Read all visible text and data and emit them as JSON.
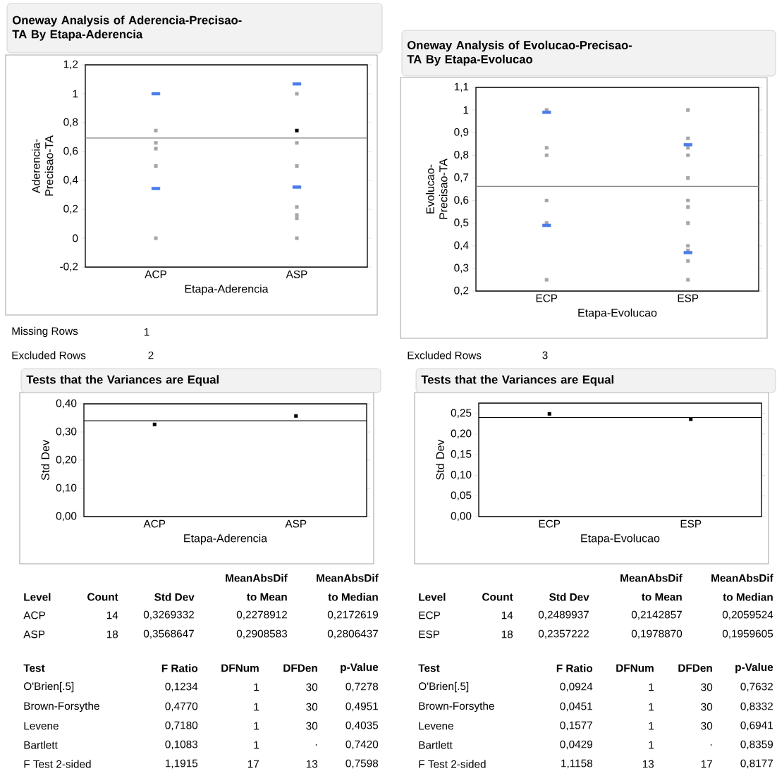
{
  "chart_data": [
    {
      "type": "scatter",
      "title": "Oneway Analysis of Aderencia-Precisao-TA By Etapa-Aderencia",
      "xlabel": "Etapa-Aderencia",
      "ylabel": "Aderencia-Precisao-TA",
      "categories": [
        "ACP",
        "ASP"
      ],
      "ylim": [
        -0.2,
        1.2
      ],
      "yticks": [
        {
          "value": -0.2,
          "label": "-0,2"
        },
        0,
        {
          "value": 0.2,
          "label": "0,2"
        },
        {
          "value": 0.4,
          "label": "0,4"
        },
        {
          "value": 0.6,
          "label": "0,6"
        },
        {
          "value": 0.8,
          "label": "0,8"
        },
        1,
        {
          "value": 1.2,
          "label": "1,2"
        }
      ],
      "marker": "square",
      "series": [
        {
          "color": "#a6a6a6",
          "x": [
            "ACP",
            "ACP",
            "ACP",
            "ACP",
            "ACP",
            "ACP",
            "ASP",
            "ASP",
            "ASP",
            "ASP",
            "ASP",
            "ASP",
            "ASP"
          ],
          "values": [
            null,
            0.745,
            0.66,
            0.62,
            0.5,
            0,
            1.0,
            0.66,
            0.5,
            0.216,
            0.161,
            0.138,
            0
          ]
        },
        {
          "color": "#000000",
          "x": [
            "ASP"
          ],
          "values": [
            0.745
          ]
        },
        {
          "color": "#4a7de8",
          "marker": "square",
          "x": [
            "ACP",
            "ASP",
            "ACP",
            "ASP"
          ],
          "values": [
            1.0,
            1.068,
            0.344,
            0.354
          ]
        }
      ],
      "ref_lines": [
        {
          "axis": "y",
          "value": 0.693,
          "color": "#808080"
        }
      ],
      "annotations": [
        "Missing Rows",
        "1",
        "Excluded Rows",
        "2"
      ]
    },
    {
      "type": "scatter",
      "title": "Oneway Analysis of Evolucao-Precisao-TA By Etapa-Evolucao",
      "xlabel": "Etapa-Evolucao",
      "ylabel": "Evolucao-Precisao-TA",
      "categories": [
        "ECP",
        "ESP"
      ],
      "ylim": [
        0.2,
        1.1
      ],
      "yticks": [
        {
          "value": 0.2,
          "label": "0,2"
        },
        {
          "value": 0.3,
          "label": "0,3"
        },
        {
          "value": 0.4,
          "label": "0,4"
        },
        {
          "value": 0.5,
          "label": "0,5"
        },
        {
          "value": 0.6,
          "label": "0,6"
        },
        {
          "value": 0.7,
          "label": "0,7"
        },
        {
          "value": 0.8,
          "label": "0,8"
        },
        {
          "value": 0.9,
          "label": "0,9"
        },
        1,
        {
          "value": 1.1,
          "label": "1,1"
        }
      ],
      "marker": "square",
      "series": [
        {
          "color": "#a6a6a6",
          "x": [
            "ECP",
            "ECP",
            "ECP",
            "ECP",
            "ECP",
            "ECP",
            "ESP",
            "ESP",
            "ESP",
            "ESP",
            "ESP",
            "ESP",
            "ESP",
            "ESP",
            "ESP",
            "ESP",
            "ESP",
            "ESP"
          ],
          "values": [
            1.0,
            0.833,
            0.8,
            0.6,
            0.5,
            0.25,
            1.0,
            0.875,
            0.833,
            0.8,
            0.7,
            0.6,
            0.571,
            0.5,
            0.4,
            0.38,
            0.333,
            0.25
          ]
        },
        {
          "color": "#4a7de8",
          "marker": "square",
          "x": [
            "ECP",
            "ESP",
            "ECP",
            "ESP"
          ],
          "values": [
            0.99,
            0.847,
            0.49,
            0.37
          ]
        }
      ],
      "ref_lines": [
        {
          "axis": "y",
          "value": 0.663,
          "color": "#808080"
        }
      ],
      "annotations": [
        "Excluded Rows",
        "3"
      ]
    },
    {
      "type": "scatter",
      "title": "Tests that the Variances are Equal",
      "xlabel": "Etapa-Aderencia",
      "ylabel": "Std Dev",
      "categories": [
        "ACP",
        "ASP"
      ],
      "ylim": [
        0,
        0.4
      ],
      "yticks": [
        {
          "value": 0,
          "label": "0,00"
        },
        {
          "value": 0.1,
          "label": "0,10"
        },
        {
          "value": 0.2,
          "label": "0,20"
        },
        {
          "value": 0.3,
          "label": "0,30"
        },
        {
          "value": 0.4,
          "label": "0,40"
        }
      ],
      "marker": "square",
      "series": [
        {
          "color": "#000000",
          "x": [
            "ACP",
            "ASP"
          ],
          "values": [
            0.327,
            0.357
          ]
        }
      ],
      "ref_lines": [
        {
          "axis": "y",
          "value": 0.34,
          "color": "#000000"
        }
      ],
      "annotations": [
        "MeanAbsDif",
        "MeanAbsDif",
        "Level",
        "Count",
        "Std Dev",
        "to Mean",
        "to Median",
        "ACP",
        "14",
        "0,3269332",
        "0,2278912",
        "0,2172619",
        "ASP",
        "18",
        "0,3568647",
        "0,2908583",
        "0,2806437",
        "Test",
        "F Ratio",
        "DFNum",
        "DFDen",
        "p-Value",
        "O'Brien[.5]",
        "0,1234",
        "1",
        "30",
        "0,7278",
        "Brown-Forsythe",
        "0,4770",
        "1",
        "30",
        "0,4951",
        "Levene",
        "0,7180",
        "1",
        "30",
        "0,4035",
        "Bartlett",
        "0,1083",
        "1",
        ".",
        "0,7420",
        "F Test 2-sided",
        "1,1915",
        "17",
        "13",
        "0,7598"
      ]
    },
    {
      "type": "scatter",
      "title": "Tests that the Variances are Equal",
      "xlabel": "Etapa-Evolucao",
      "ylabel": "Std Dev",
      "categories": [
        "ECP",
        "ESP"
      ],
      "ylim": [
        0,
        0.275
      ],
      "yticks": [
        {
          "value": 0,
          "label": "0,00"
        },
        {
          "value": 0.05,
          "label": "0,05"
        },
        {
          "value": 0.1,
          "label": "0,10"
        },
        {
          "value": 0.15,
          "label": "0,15"
        },
        {
          "value": 0.2,
          "label": "0,20"
        },
        {
          "value": 0.25,
          "label": "0,25"
        }
      ],
      "marker": "square",
      "series": [
        {
          "color": "#000000",
          "x": [
            "ECP",
            "ESP"
          ],
          "values": [
            0.249,
            0.236
          ]
        }
      ],
      "ref_lines": [
        {
          "axis": "y",
          "value": 0.24,
          "color": "#000000"
        }
      ],
      "annotations": [
        "MeanAbsDif",
        "MeanAbsDif",
        "Level",
        "Count",
        "Std Dev",
        "to Mean",
        "to Median",
        "ECP",
        "14",
        "0,2489937",
        "0,2142857",
        "0,2059524",
        "ESP",
        "18",
        "0,2357222",
        "0,1978870",
        "0,1959605",
        "Test",
        "F Ratio",
        "DFNum",
        "DFDen",
        "p-Value",
        "O'Brien[.5]",
        "0,0924",
        "1",
        "30",
        "0,7632",
        "Brown-Forsythe",
        "0,0451",
        "1",
        "30",
        "0,8332",
        "Levene",
        "0,1577",
        "1",
        "30",
        "0,6941",
        "Bartlett",
        "0,0429",
        "1",
        ".",
        "0,8359",
        "F Test 2-sided",
        "1,1158",
        "13",
        "17",
        "0,8177"
      ]
    }
  ]
}
